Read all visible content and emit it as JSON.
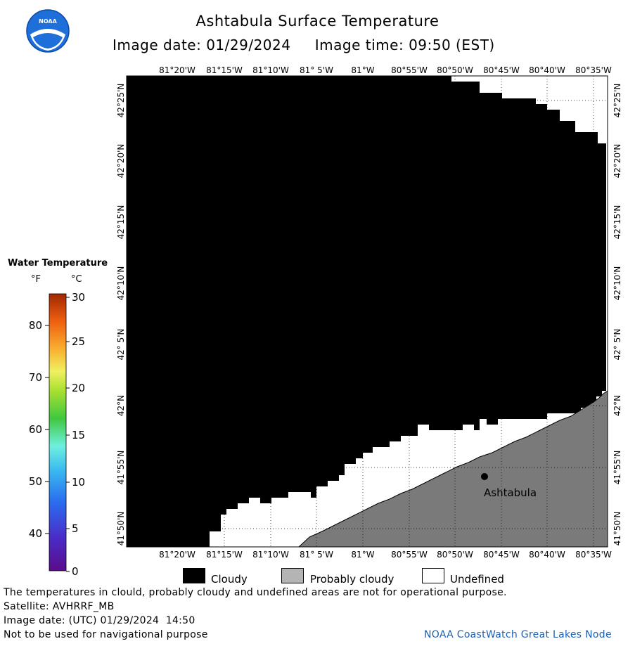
{
  "header": {
    "title": "Ashtabula Surface Temperature",
    "image_date_label": "Image date:",
    "image_date": "01/29/2024",
    "image_time_label": "Image time:",
    "image_time": "09:50 (EST)",
    "logo_text": "NOAA"
  },
  "map": {
    "lon_labels": [
      "81°20'W",
      "81°15'W",
      "81°10'W",
      "81° 5'W",
      "81°W",
      "80°55'W",
      "80°50'W",
      "80°45'W",
      "80°40'W",
      "80°35'W"
    ],
    "lat_labels": [
      "42°25'N",
      "42°20'N",
      "42°15'N",
      "42°10'N",
      "42° 5'N",
      "42°N",
      "41°55'N",
      "41°50'N"
    ],
    "city": {
      "name": "Ashtabula"
    },
    "colors": {
      "cloudy": "#000000",
      "land": "#7a7a7a",
      "undefined": "#ffffff"
    }
  },
  "legend": {
    "title": "Water Temperature",
    "unit_f": "°F",
    "unit_c": "°C",
    "f_ticks": [
      "80",
      "70",
      "60",
      "50",
      "40"
    ],
    "c_ticks": [
      "30",
      "25",
      "20",
      "15",
      "10",
      "5",
      "0"
    ]
  },
  "key": {
    "cloudy": "Cloudy",
    "probably_cloudy": "Probably cloudy",
    "undefined": "Undefined"
  },
  "footer": {
    "warning": "The temperatures in clould, probably cloudy and undefined areas are not for operational purpose.",
    "satellite": "Satellite: AVHRRF_MB",
    "utc_date": "Image date: (UTC) 01/29/2024  14:50",
    "nav_warning": "Not to be used for navigational purpose",
    "credit": "NOAA CoastWatch Great Lakes Node"
  }
}
